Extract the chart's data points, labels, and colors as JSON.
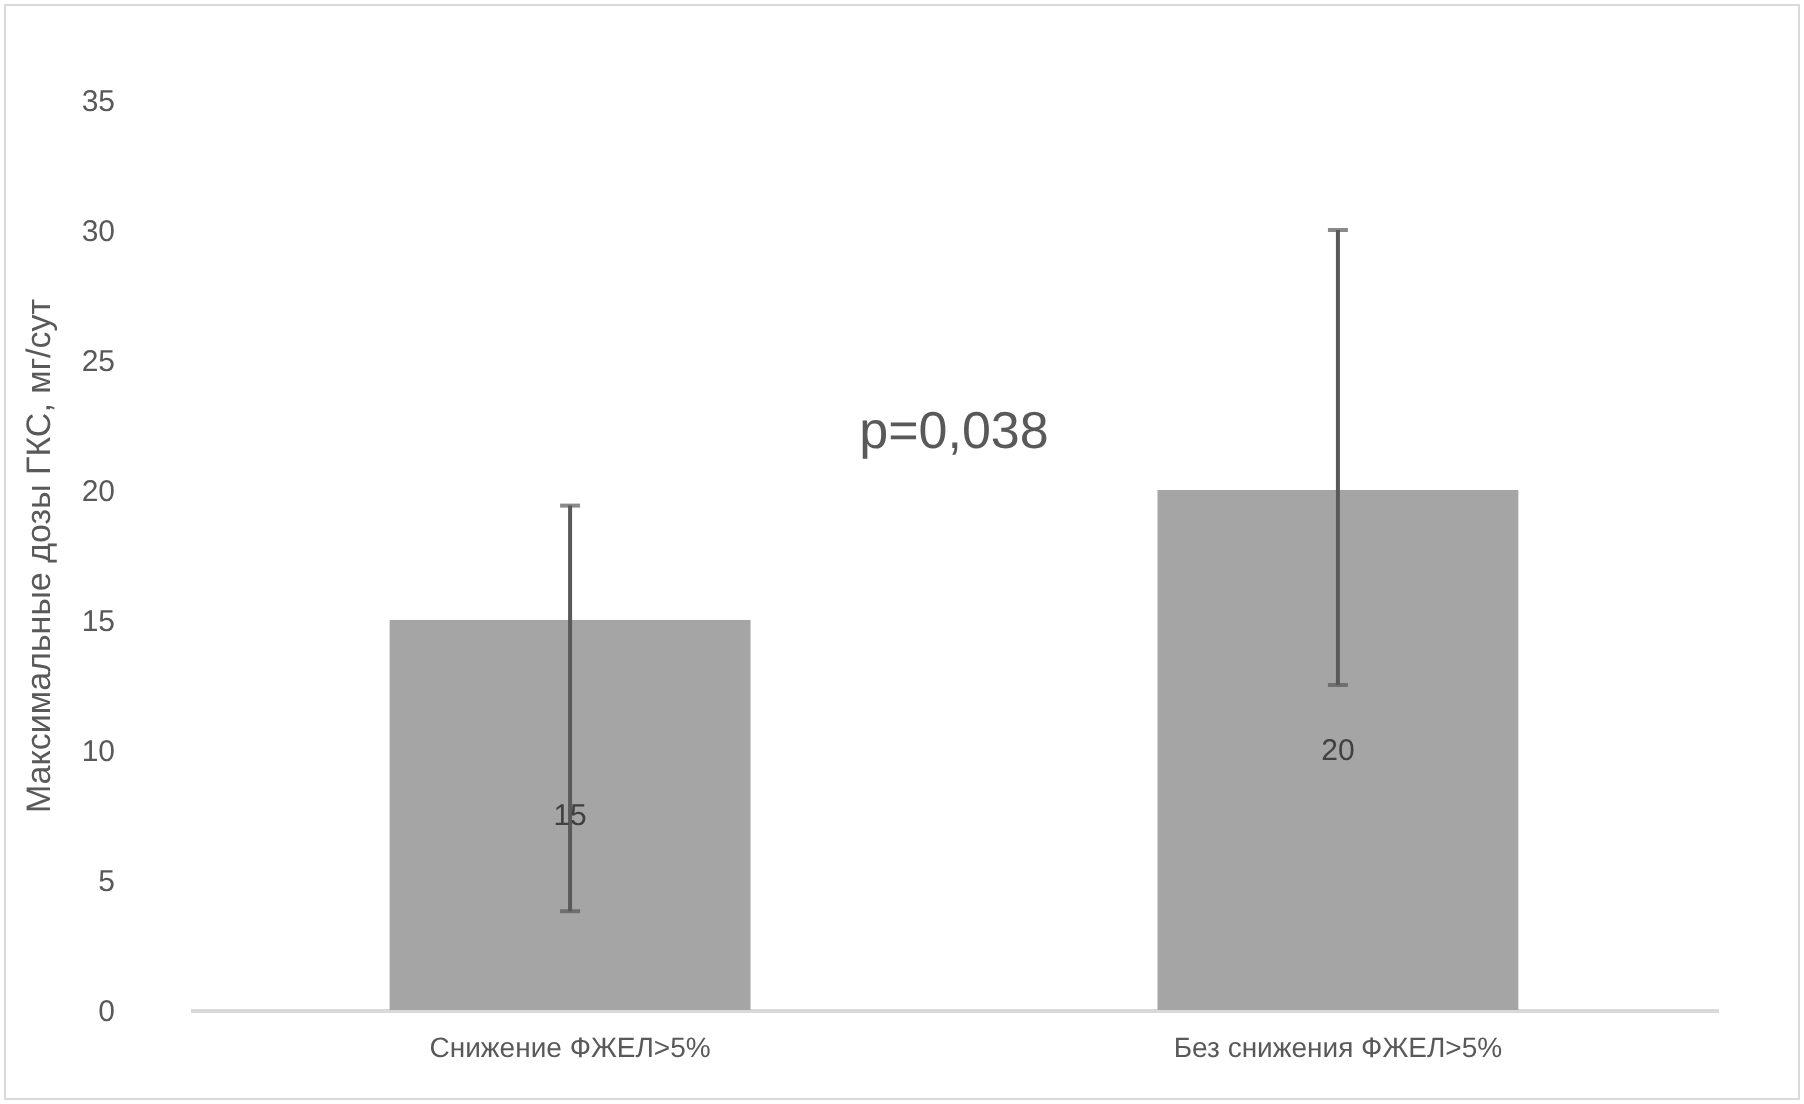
{
  "chart_data": {
    "type": "bar",
    "ylabel": "Максимальные дозы ГКС, мг/сут",
    "categories": [
      "Снижение ФЖЕЛ>5%",
      "Без снижения ФЖЕЛ>5%"
    ],
    "values": [
      15,
      20
    ],
    "color": "#a5a5a5",
    "errors": [
      [
        3.8,
        19.4
      ],
      [
        12.5,
        30
      ]
    ],
    "ylim": [
      0,
      35
    ],
    "yticks": [
      0,
      5,
      10,
      15,
      20,
      25,
      30,
      35
    ],
    "grid": false,
    "data_labels": true,
    "annotations": [
      "p=0,038"
    ]
  }
}
